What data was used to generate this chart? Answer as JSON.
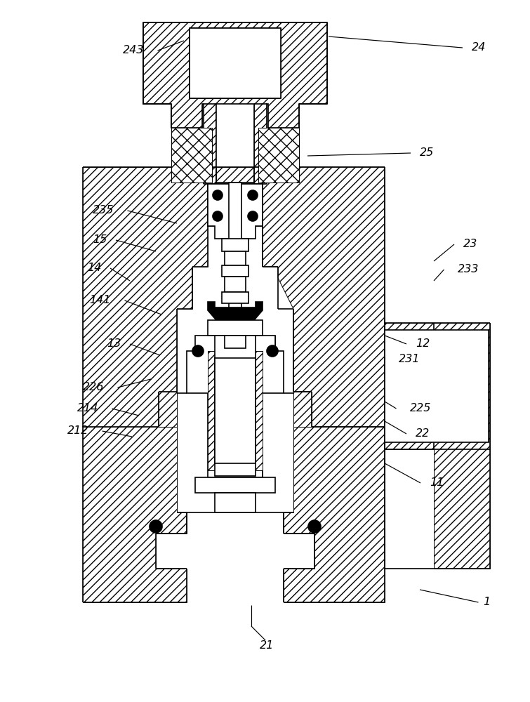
{
  "bg": "#ffffff",
  "lw": 1.2,
  "lw_thin": 0.7,
  "fig_w": 7.55,
  "fig_h": 10.0,
  "labels_left": [
    [
      "243",
      205,
      72,
      262,
      58
    ],
    [
      "235",
      162,
      300,
      252,
      318
    ],
    [
      "15",
      152,
      342,
      222,
      358
    ],
    [
      "14",
      144,
      382,
      185,
      400
    ],
    [
      "141",
      158,
      428,
      230,
      448
    ],
    [
      "13",
      172,
      490,
      228,
      506
    ],
    [
      "226",
      148,
      552,
      215,
      540
    ],
    [
      "214",
      140,
      582,
      198,
      592
    ],
    [
      "212",
      126,
      614,
      188,
      622
    ]
  ],
  "labels_right": [
    [
      "24",
      672,
      68,
      468,
      52
    ],
    [
      "25",
      598,
      218,
      438,
      222
    ],
    [
      "23",
      660,
      348,
      618,
      372
    ],
    [
      "233",
      652,
      384,
      618,
      400
    ],
    [
      "12",
      592,
      490,
      548,
      478
    ],
    [
      "231",
      568,
      512,
      548,
      508
    ],
    [
      "225",
      584,
      582,
      548,
      572
    ],
    [
      "22",
      592,
      618,
      548,
      600
    ],
    [
      "11",
      612,
      688,
      548,
      660
    ],
    [
      "1",
      688,
      858,
      598,
      840
    ]
  ],
  "label_bottom": [
    "21",
    358,
    952,
    358,
    862
  ]
}
